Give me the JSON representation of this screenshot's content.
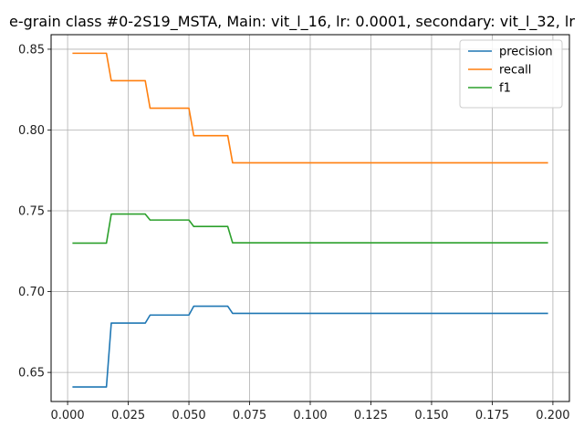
{
  "chart_data": {
    "type": "line",
    "title": "e-grain class #0-2S19_MSTA, Main: vit_l_16, lr: 0.0001, secondary: vit_l_32, lr",
    "xlabel": "",
    "ylabel": "",
    "xlim": [
      -0.0068,
      0.2068
    ],
    "ylim": [
      0.632,
      0.859
    ],
    "grid": true,
    "legend_position": "top-right",
    "x_ticks": [
      0.0,
      0.025,
      0.05,
      0.075,
      0.1,
      0.125,
      0.15,
      0.175,
      0.2
    ],
    "x_tick_labels": [
      "0.000",
      "0.025",
      "0.050",
      "0.075",
      "0.100",
      "0.125",
      "0.150",
      "0.175",
      "0.200"
    ],
    "y_ticks": [
      0.65,
      0.7,
      0.75,
      0.8,
      0.85
    ],
    "y_tick_labels": [
      "0.65",
      "0.70",
      "0.75",
      "0.80",
      "0.85"
    ],
    "x": [
      0.002,
      0.016,
      0.018,
      0.032,
      0.034,
      0.05,
      0.052,
      0.066,
      0.068,
      0.198
    ],
    "series": [
      {
        "name": "precision",
        "color": "#1f77b4",
        "values": [
          0.641,
          0.641,
          0.6805,
          0.6805,
          0.6855,
          0.6855,
          0.691,
          0.691,
          0.6865,
          0.6865
        ]
      },
      {
        "name": "recall",
        "color": "#ff7f0e",
        "values": [
          0.8475,
          0.8475,
          0.8305,
          0.8305,
          0.8135,
          0.8135,
          0.7965,
          0.7965,
          0.7797,
          0.7797
        ]
      },
      {
        "name": "f1",
        "color": "#2ca02c",
        "values": [
          0.73,
          0.73,
          0.748,
          0.748,
          0.7443,
          0.7443,
          0.7403,
          0.7403,
          0.7302,
          0.7302
        ]
      }
    ]
  }
}
